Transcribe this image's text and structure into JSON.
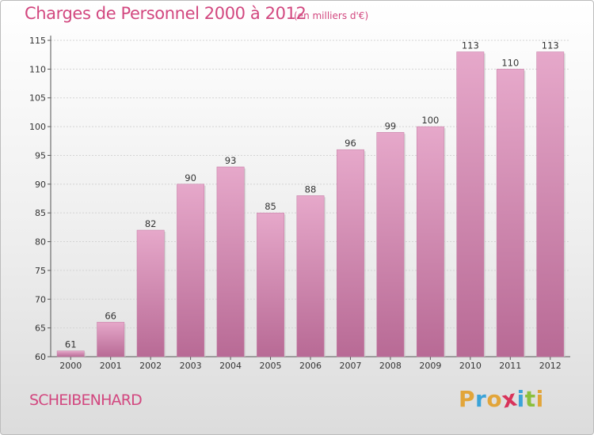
{
  "chart_data": {
    "type": "bar",
    "title": "Charges de Personnel 2000 à 2012",
    "subtitle": "(en milliers d'€)",
    "categories": [
      "2000",
      "2001",
      "2002",
      "2003",
      "2004",
      "2005",
      "2006",
      "2007",
      "2008",
      "2009",
      "2010",
      "2011",
      "2012"
    ],
    "values": [
      61,
      66,
      82,
      90,
      93,
      85,
      88,
      96,
      99,
      100,
      113,
      110,
      113
    ],
    "ylim": [
      60,
      115
    ],
    "yticks": [
      60,
      65,
      70,
      75,
      80,
      85,
      90,
      95,
      100,
      105,
      110,
      115
    ],
    "grid": true,
    "bar_color": "#d77fae",
    "bar_color_light": "#e6a8ca",
    "bar_color_dark": "#b86a95"
  },
  "footer": {
    "commune": "SCHEIBENHARD",
    "logo": {
      "letters": [
        "P",
        "r",
        "o",
        "x",
        "i",
        "t",
        "i"
      ],
      "colors": [
        "#e2a53a",
        "#3ba3d8",
        "#e2a53a",
        "#d8335a",
        "#3ba3d8",
        "#8bbf3c",
        "#e2a53a"
      ]
    }
  },
  "colors": {
    "accent": "#d2477f"
  }
}
